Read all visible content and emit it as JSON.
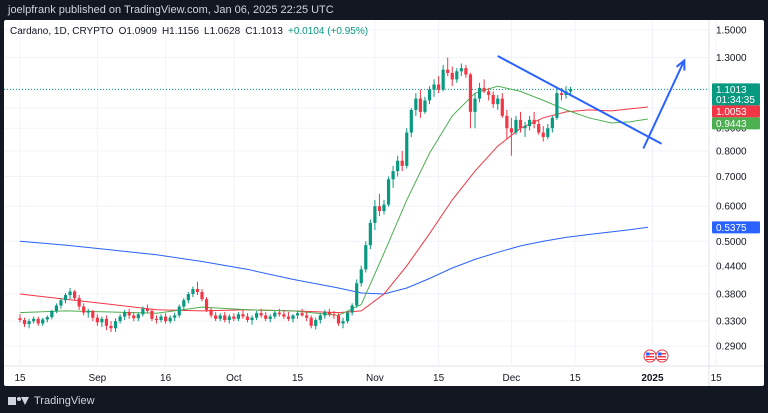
{
  "header": {
    "published": "joelpfrank published on TradingView.com, Jan 06, 2025 22:25 UTC"
  },
  "footer": {
    "brand": "TradingView",
    "logo_icon": "tradingview-logo-icon"
  },
  "legend": {
    "symbol": "Cardano, 1D, CRYPTO",
    "open": "O1.0909",
    "high": "H1.1156",
    "low": "L1.0628",
    "close": "C1.1013",
    "change": "+0.0104 (+0.95%)"
  },
  "colors": {
    "up": "#089981",
    "down": "#f23645",
    "ema_fast": "#4caf50",
    "ema_mid": "#f23645",
    "ema_slow": "#2962ff",
    "trendline": "#2962ff"
  },
  "chart_data": {
    "type": "candlestick",
    "y_scale": "log",
    "y_ticks": [
      "1.5000",
      "1.3000",
      "1.1000",
      "1.0000",
      "0.9000",
      "0.8000",
      "0.7000",
      "0.6000",
      "0.5000",
      "0.4400",
      "0.3800",
      "0.3300",
      "0.2900"
    ],
    "y_tick_values": [
      1.5,
      1.3,
      1.1,
      1.0,
      0.9,
      0.8,
      0.7,
      0.6,
      0.5,
      0.44,
      0.38,
      0.33,
      0.29
    ],
    "x_ticks": [
      {
        "label": "15",
        "day": 0
      },
      {
        "label": "Sep",
        "day": 17
      },
      {
        "label": "16",
        "day": 32
      },
      {
        "label": "Oct",
        "day": 47
      },
      {
        "label": "15",
        "day": 61
      },
      {
        "label": "Nov",
        "day": 78
      },
      {
        "label": "15",
        "day": 92
      },
      {
        "label": "Dec",
        "day": 108
      },
      {
        "label": "15",
        "day": 122
      },
      {
        "label": "2025",
        "day": 139
      },
      {
        "label": "15",
        "day": 153
      }
    ],
    "price_labels": [
      {
        "value": 1.1013,
        "text": "1.1013",
        "sub": "01:34:35",
        "color": "#089981"
      },
      {
        "value": 1.0053,
        "text": "1.0053",
        "color": "#f23645"
      },
      {
        "value": 0.9443,
        "text": "0.9443",
        "color": "#4caf50"
      },
      {
        "value": 0.5375,
        "text": "0.5375",
        "color": "#2962ff"
      }
    ],
    "candles": [
      [
        0.335,
        0.342,
        0.328,
        0.332
      ],
      [
        0.332,
        0.336,
        0.32,
        0.325
      ],
      [
        0.325,
        0.334,
        0.318,
        0.33
      ],
      [
        0.33,
        0.338,
        0.326,
        0.334
      ],
      [
        0.334,
        0.338,
        0.322,
        0.326
      ],
      [
        0.326,
        0.336,
        0.322,
        0.333
      ],
      [
        0.333,
        0.34,
        0.328,
        0.337
      ],
      [
        0.337,
        0.35,
        0.333,
        0.348
      ],
      [
        0.348,
        0.362,
        0.344,
        0.358
      ],
      [
        0.358,
        0.372,
        0.352,
        0.368
      ],
      [
        0.368,
        0.382,
        0.362,
        0.378
      ],
      [
        0.378,
        0.392,
        0.37,
        0.385
      ],
      [
        0.385,
        0.388,
        0.368,
        0.372
      ],
      [
        0.372,
        0.378,
        0.35,
        0.356
      ],
      [
        0.356,
        0.362,
        0.34,
        0.345
      ],
      [
        0.345,
        0.352,
        0.336,
        0.348
      ],
      [
        0.348,
        0.35,
        0.33,
        0.336
      ],
      [
        0.336,
        0.342,
        0.322,
        0.328
      ],
      [
        0.328,
        0.338,
        0.32,
        0.334
      ],
      [
        0.334,
        0.34,
        0.315,
        0.322
      ],
      [
        0.322,
        0.33,
        0.312,
        0.318
      ],
      [
        0.318,
        0.335,
        0.312,
        0.33
      ],
      [
        0.33,
        0.342,
        0.326,
        0.338
      ],
      [
        0.338,
        0.35,
        0.332,
        0.346
      ],
      [
        0.346,
        0.352,
        0.334,
        0.34
      ],
      [
        0.34,
        0.346,
        0.33,
        0.335
      ],
      [
        0.335,
        0.345,
        0.33,
        0.342
      ],
      [
        0.342,
        0.356,
        0.338,
        0.352
      ],
      [
        0.352,
        0.36,
        0.344,
        0.348
      ],
      [
        0.348,
        0.352,
        0.33,
        0.334
      ],
      [
        0.334,
        0.34,
        0.326,
        0.332
      ],
      [
        0.332,
        0.342,
        0.328,
        0.338
      ],
      [
        0.338,
        0.344,
        0.326,
        0.33
      ],
      [
        0.33,
        0.34,
        0.326,
        0.336
      ],
      [
        0.336,
        0.345,
        0.33,
        0.34
      ],
      [
        0.34,
        0.36,
        0.336,
        0.356
      ],
      [
        0.356,
        0.372,
        0.35,
        0.368
      ],
      [
        0.368,
        0.384,
        0.362,
        0.38
      ],
      [
        0.38,
        0.395,
        0.374,
        0.39
      ],
      [
        0.39,
        0.405,
        0.378,
        0.384
      ],
      [
        0.384,
        0.39,
        0.366,
        0.37
      ],
      [
        0.37,
        0.374,
        0.346,
        0.35
      ],
      [
        0.35,
        0.354,
        0.336,
        0.34
      ],
      [
        0.34,
        0.346,
        0.33,
        0.334
      ],
      [
        0.334,
        0.344,
        0.33,
        0.34
      ],
      [
        0.34,
        0.346,
        0.328,
        0.332
      ],
      [
        0.332,
        0.342,
        0.326,
        0.338
      ],
      [
        0.338,
        0.344,
        0.33,
        0.334
      ],
      [
        0.334,
        0.346,
        0.33,
        0.342
      ],
      [
        0.342,
        0.35,
        0.334,
        0.338
      ],
      [
        0.338,
        0.344,
        0.328,
        0.332
      ],
      [
        0.332,
        0.34,
        0.324,
        0.336
      ],
      [
        0.336,
        0.348,
        0.332,
        0.344
      ],
      [
        0.344,
        0.352,
        0.336,
        0.34
      ],
      [
        0.34,
        0.346,
        0.33,
        0.334
      ],
      [
        0.334,
        0.342,
        0.328,
        0.338
      ],
      [
        0.338,
        0.348,
        0.334,
        0.345
      ],
      [
        0.345,
        0.352,
        0.338,
        0.342
      ],
      [
        0.342,
        0.35,
        0.334,
        0.338
      ],
      [
        0.338,
        0.346,
        0.33,
        0.334
      ],
      [
        0.334,
        0.342,
        0.328,
        0.34
      ],
      [
        0.34,
        0.348,
        0.334,
        0.344
      ],
      [
        0.344,
        0.352,
        0.338,
        0.34
      ],
      [
        0.34,
        0.346,
        0.33,
        0.336
      ],
      [
        0.336,
        0.34,
        0.318,
        0.322
      ],
      [
        0.322,
        0.336,
        0.316,
        0.332
      ],
      [
        0.332,
        0.344,
        0.326,
        0.34
      ],
      [
        0.34,
        0.35,
        0.334,
        0.346
      ],
      [
        0.346,
        0.352,
        0.338,
        0.342
      ],
      [
        0.342,
        0.348,
        0.334,
        0.34
      ],
      [
        0.34,
        0.344,
        0.322,
        0.326
      ],
      [
        0.326,
        0.336,
        0.318,
        0.33
      ],
      [
        0.33,
        0.348,
        0.326,
        0.345
      ],
      [
        0.345,
        0.362,
        0.34,
        0.358
      ],
      [
        0.358,
        0.41,
        0.354,
        0.402
      ],
      [
        0.402,
        0.44,
        0.395,
        0.432
      ],
      [
        0.432,
        0.5,
        0.425,
        0.49
      ],
      [
        0.49,
        0.56,
        0.48,
        0.55
      ],
      [
        0.55,
        0.62,
        0.53,
        0.6
      ],
      [
        0.6,
        0.64,
        0.57,
        0.585
      ],
      [
        0.585,
        0.62,
        0.575,
        0.605
      ],
      [
        0.605,
        0.7,
        0.598,
        0.69
      ],
      [
        0.69,
        0.74,
        0.66,
        0.72
      ],
      [
        0.72,
        0.78,
        0.7,
        0.76
      ],
      [
        0.76,
        0.8,
        0.72,
        0.74
      ],
      [
        0.74,
        0.9,
        0.73,
        0.88
      ],
      [
        0.88,
        1.0,
        0.86,
        0.99
      ],
      [
        0.99,
        1.08,
        0.96,
        1.05
      ],
      [
        1.05,
        1.1,
        0.95,
        0.98
      ],
      [
        0.98,
        1.06,
        0.97,
        1.04
      ],
      [
        1.04,
        1.12,
        1.02,
        1.1
      ],
      [
        1.1,
        1.16,
        1.06,
        1.13
      ],
      [
        1.13,
        1.18,
        1.08,
        1.1
      ],
      [
        1.1,
        1.25,
        1.09,
        1.22
      ],
      [
        1.22,
        1.3,
        1.18,
        1.2
      ],
      [
        1.2,
        1.24,
        1.12,
        1.16
      ],
      [
        1.16,
        1.23,
        1.14,
        1.21
      ],
      [
        1.21,
        1.26,
        1.18,
        1.23
      ],
      [
        1.23,
        1.25,
        1.17,
        1.19
      ],
      [
        1.19,
        1.2,
        0.9,
        0.98
      ],
      [
        0.98,
        1.08,
        0.9,
        1.05
      ],
      [
        1.05,
        1.14,
        1.03,
        1.11
      ],
      [
        1.11,
        1.16,
        1.08,
        1.09
      ],
      [
        1.09,
        1.11,
        1.04,
        1.07
      ],
      [
        1.07,
        1.09,
        1.0,
        1.02
      ],
      [
        1.02,
        1.07,
        0.99,
        1.05
      ],
      [
        1.05,
        1.08,
        0.95,
        0.96
      ],
      [
        0.96,
        0.99,
        0.85,
        0.9
      ],
      [
        0.9,
        0.95,
        0.78,
        0.88
      ],
      [
        0.88,
        0.96,
        0.87,
        0.94
      ],
      [
        0.94,
        0.98,
        0.88,
        0.9
      ],
      [
        0.9,
        0.93,
        0.86,
        0.91
      ],
      [
        0.91,
        0.96,
        0.89,
        0.94
      ],
      [
        0.94,
        0.98,
        0.9,
        0.92
      ],
      [
        0.92,
        0.94,
        0.87,
        0.88
      ],
      [
        0.88,
        0.91,
        0.84,
        0.86
      ],
      [
        0.86,
        0.92,
        0.85,
        0.9
      ],
      [
        0.9,
        0.96,
        0.88,
        0.95
      ],
      [
        0.95,
        1.11,
        0.94,
        1.08
      ],
      [
        1.08,
        1.11,
        1.04,
        1.07
      ],
      [
        1.07,
        1.12,
        1.05,
        1.09
      ],
      [
        1.09,
        1.116,
        1.063,
        1.101
      ]
    ],
    "ema_fast": [
      [
        0,
        0.345
      ],
      [
        10,
        0.348
      ],
      [
        20,
        0.346
      ],
      [
        30,
        0.344
      ],
      [
        40,
        0.355
      ],
      [
        50,
        0.35
      ],
      [
        60,
        0.348
      ],
      [
        70,
        0.34
      ],
      [
        75,
        0.36
      ],
      [
        80,
        0.47
      ],
      [
        85,
        0.62
      ],
      [
        90,
        0.79
      ],
      [
        95,
        0.96
      ],
      [
        100,
        1.08
      ],
      [
        105,
        1.12
      ],
      [
        110,
        1.09
      ],
      [
        115,
        1.04
      ],
      [
        120,
        0.99
      ],
      [
        125,
        0.95
      ],
      [
        130,
        0.925
      ],
      [
        134,
        0.93
      ],
      [
        138,
        0.944
      ]
    ],
    "ema_mid": [
      [
        0,
        0.38
      ],
      [
        10,
        0.37
      ],
      [
        20,
        0.36
      ],
      [
        30,
        0.35
      ],
      [
        40,
        0.348
      ],
      [
        50,
        0.35
      ],
      [
        60,
        0.348
      ],
      [
        70,
        0.345
      ],
      [
        75,
        0.348
      ],
      [
        80,
        0.38
      ],
      [
        85,
        0.44
      ],
      [
        90,
        0.52
      ],
      [
        95,
        0.62
      ],
      [
        100,
        0.72
      ],
      [
        105,
        0.82
      ],
      [
        110,
        0.9
      ],
      [
        115,
        0.95
      ],
      [
        120,
        0.98
      ],
      [
        125,
        0.99
      ],
      [
        130,
        0.985
      ],
      [
        134,
        0.995
      ],
      [
        138,
        1.005
      ]
    ],
    "ema_slow": [
      [
        0,
        0.5
      ],
      [
        10,
        0.49
      ],
      [
        20,
        0.478
      ],
      [
        30,
        0.466
      ],
      [
        40,
        0.45
      ],
      [
        50,
        0.432
      ],
      [
        60,
        0.41
      ],
      [
        70,
        0.392
      ],
      [
        75,
        0.382
      ],
      [
        80,
        0.38
      ],
      [
        85,
        0.392
      ],
      [
        90,
        0.412
      ],
      [
        95,
        0.435
      ],
      [
        100,
        0.455
      ],
      [
        105,
        0.472
      ],
      [
        110,
        0.488
      ],
      [
        115,
        0.5
      ],
      [
        120,
        0.51
      ],
      [
        125,
        0.518
      ],
      [
        130,
        0.525
      ],
      [
        134,
        0.531
      ],
      [
        138,
        0.5375
      ]
    ],
    "trendline": [
      [
        105,
        1.31
      ],
      [
        141,
        0.83
      ]
    ],
    "arrow": [
      [
        137,
        0.81
      ],
      [
        146,
        1.28
      ]
    ],
    "current_price": 1.1013
  }
}
